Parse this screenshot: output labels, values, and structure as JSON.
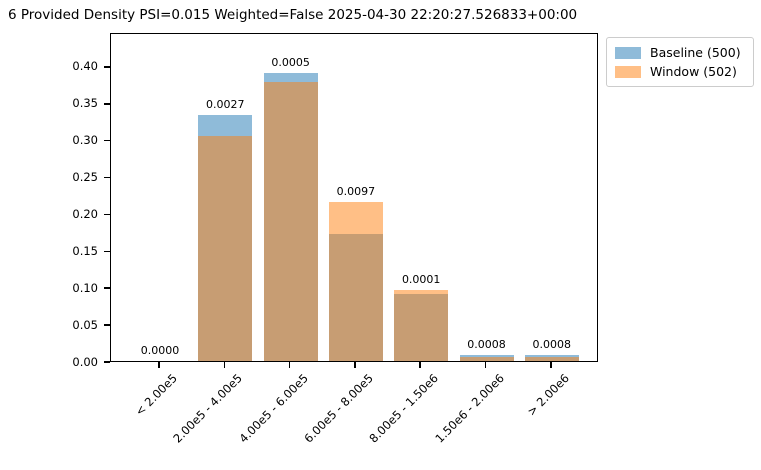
{
  "chart_data": {
    "type": "bar",
    "title": "6 Provided Density PSI=0.015 Weighted=False 2025-04-30 22:20:27.526833+00:00",
    "categories": [
      "< 2.00e5",
      "2.00e5 - 4.00e5",
      "4.00e5 - 6.00e5",
      "6.00e5 - 8.00e5",
      "8.00e5 - 1.50e6",
      "1.50e6 - 2.00e6",
      "> 2.00e6"
    ],
    "series": [
      {
        "name": "Baseline (500)",
        "color": "#1f77b4",
        "alpha": 0.5,
        "values": [
          0.0,
          0.334,
          0.39,
          0.172,
          0.091,
          0.008,
          0.008
        ]
      },
      {
        "name": "Window (502)",
        "color": "#ff7f0e",
        "alpha": 0.5,
        "values": [
          0.0,
          0.305,
          0.378,
          0.216,
          0.096,
          0.006,
          0.006
        ]
      }
    ],
    "bar_labels": [
      "0.0000",
      "0.0027",
      "0.0005",
      "0.0097",
      "0.0001",
      "0.0008",
      "0.0008"
    ],
    "yticks": [
      "0.00",
      "0.05",
      "0.10",
      "0.15",
      "0.20",
      "0.25",
      "0.30",
      "0.35",
      "0.40"
    ],
    "ylim": [
      0,
      0.4461
    ],
    "xlabel": "",
    "ylabel": "",
    "grid": false,
    "bar_style": "overlaid translucent (alpha 0.5), overlap renders brown",
    "legend_position": "upper right, outside axes",
    "x_tick_rotation": 45
  }
}
